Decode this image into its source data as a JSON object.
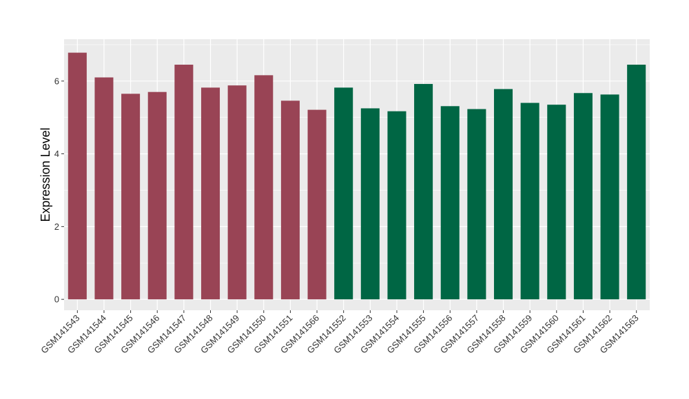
{
  "chart_data": {
    "type": "bar",
    "title": "",
    "xlabel": "",
    "ylabel": "Expression Level",
    "ylim": [
      -0.3,
      7.15
    ],
    "yticks": [
      0,
      2,
      4,
      6
    ],
    "ytick_labels": [
      "0",
      "2",
      "4",
      "6"
    ],
    "grid": true,
    "legend": "none",
    "colors": {
      "group1": "#994455",
      "group2": "#006644",
      "panel_bg": "#EBEBEB",
      "grid": "#FFFFFF"
    },
    "categories": [
      "GSM141543",
      "GSM141544",
      "GSM141545",
      "GSM141546",
      "GSM141547",
      "GSM141548",
      "GSM141549",
      "GSM141550",
      "GSM141551",
      "GSM141566",
      "GSM141552",
      "GSM141553",
      "GSM141554",
      "GSM141555",
      "GSM141556",
      "GSM141557",
      "GSM141558",
      "GSM141559",
      "GSM141560",
      "GSM141561",
      "GSM141562",
      "GSM141563"
    ],
    "values": [
      6.78,
      6.1,
      5.65,
      5.7,
      6.45,
      5.82,
      5.88,
      6.16,
      5.46,
      5.21,
      5.82,
      5.25,
      5.17,
      5.92,
      5.31,
      5.23,
      5.78,
      5.4,
      5.35,
      5.67,
      5.63,
      6.45
    ],
    "bar_groups": [
      1,
      1,
      1,
      1,
      1,
      1,
      1,
      1,
      1,
      1,
      2,
      2,
      2,
      2,
      2,
      2,
      2,
      2,
      2,
      2,
      2,
      2
    ]
  }
}
